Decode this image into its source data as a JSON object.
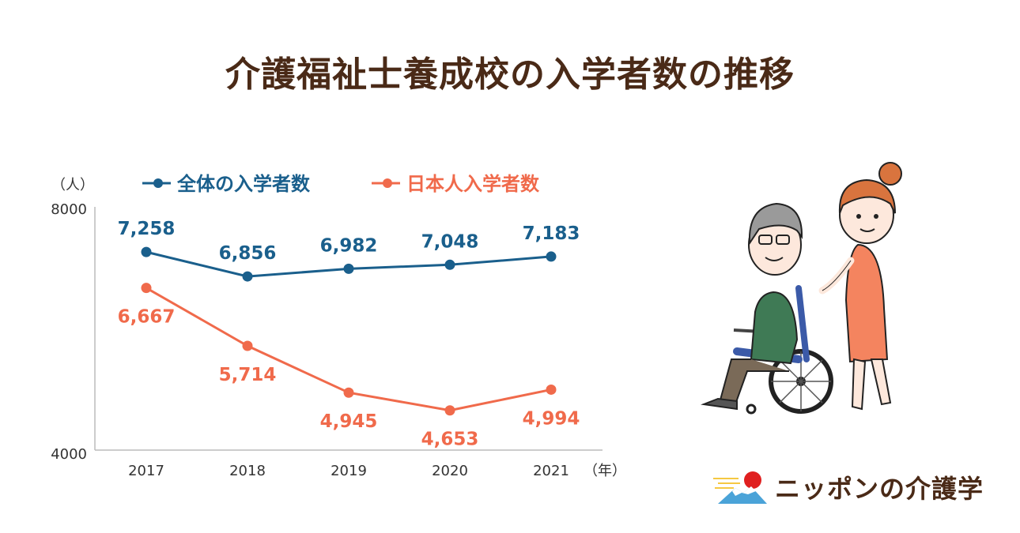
{
  "title": "介護福祉士養成校の入学者数の推移",
  "brand": {
    "name": "ニッポンの介護学"
  },
  "chart_data": {
    "type": "line",
    "title": "介護福祉士養成校の入学者数の推移",
    "ylabel": "（人）",
    "xlabel": "（年）",
    "categories": [
      "2017",
      "2018",
      "2019",
      "2020",
      "2021"
    ],
    "ylim": [
      4000,
      8000
    ],
    "yticks": [
      "8000",
      "4000"
    ],
    "grid": false,
    "legend_position": "top",
    "series": [
      {
        "name": "全体の入学者数",
        "color": "#1a5f8c",
        "values": [
          7258,
          6856,
          6982,
          7048,
          7183
        ],
        "labels": [
          "7,258",
          "6,856",
          "6,982",
          "7,048",
          "7,183"
        ],
        "label_position": "above"
      },
      {
        "name": "日本人入学者数",
        "color": "#f06a4b",
        "values": [
          6667,
          5714,
          4945,
          4653,
          4994
        ],
        "labels": [
          "6,667",
          "5,714",
          "4,945",
          "4,653",
          "4,994"
        ],
        "label_position": "below"
      }
    ]
  }
}
